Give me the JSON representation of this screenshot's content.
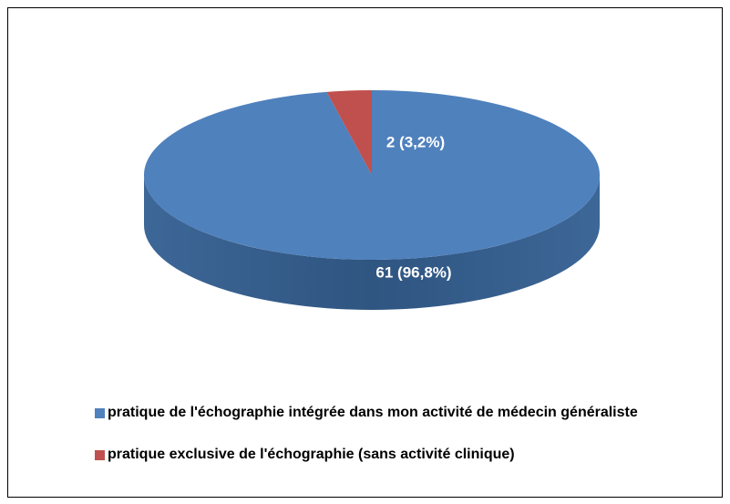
{
  "chart_data": {
    "type": "pie",
    "categories": [
      "pratique de l'échographie intégrée dans mon activité de médecin généraliste",
      "pratique exclusive de l'échographie (sans activité clinique)"
    ],
    "values": [
      61,
      2
    ],
    "value_labels": [
      "61 (96,8%)",
      "2 (3,2%)"
    ],
    "colors": [
      "#4f81bd",
      "#c0504d"
    ],
    "legend": "bottom"
  }
}
